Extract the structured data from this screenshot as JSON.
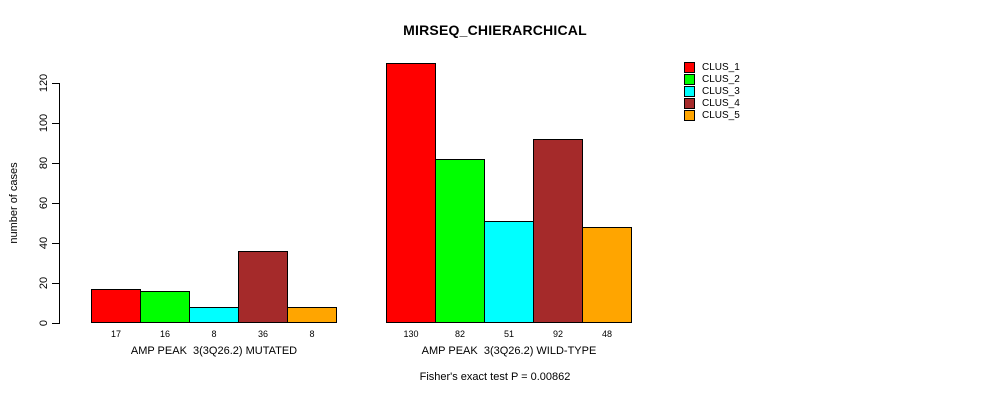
{
  "title": "MIRSEQ_CHIERARCHICAL",
  "footer": "Fisher's exact test P = 0.00862",
  "y_axis": {
    "label": "number of cases",
    "ticks": [
      0,
      20,
      40,
      60,
      80,
      100,
      120
    ]
  },
  "chart_data": {
    "type": "bar",
    "grouped": true,
    "title": "MIRSEQ_CHIERARCHICAL",
    "categories": [
      "AMP PEAK  3(3Q26.2) MUTATED",
      "AMP PEAK  3(3Q26.2) WILD-TYPE"
    ],
    "series": [
      {
        "name": "CLUS_1",
        "color": "#FF0000",
        "values": [
          17,
          130
        ]
      },
      {
        "name": "CLUS_2",
        "color": "#00FF00",
        "values": [
          16,
          82
        ]
      },
      {
        "name": "CLUS_3",
        "color": "#00FFFF",
        "values": [
          8,
          51
        ]
      },
      {
        "name": "CLUS_4",
        "color": "#A52A2A",
        "values": [
          36,
          92
        ]
      },
      {
        "name": "CLUS_5",
        "color": "#FFA500",
        "values": [
          8,
          48
        ]
      }
    ],
    "xlabel": "",
    "ylabel": "number of cases",
    "ylim": [
      0,
      130
    ],
    "yticks": [
      0,
      20,
      40,
      60,
      80,
      100,
      120
    ],
    "show_bar_values": true,
    "grid": false,
    "legend_position": "right",
    "annotation": "Fisher's exact test P = 0.00862",
    "bar_border_color": "#000000",
    "background_color": "#FFFFFF"
  }
}
